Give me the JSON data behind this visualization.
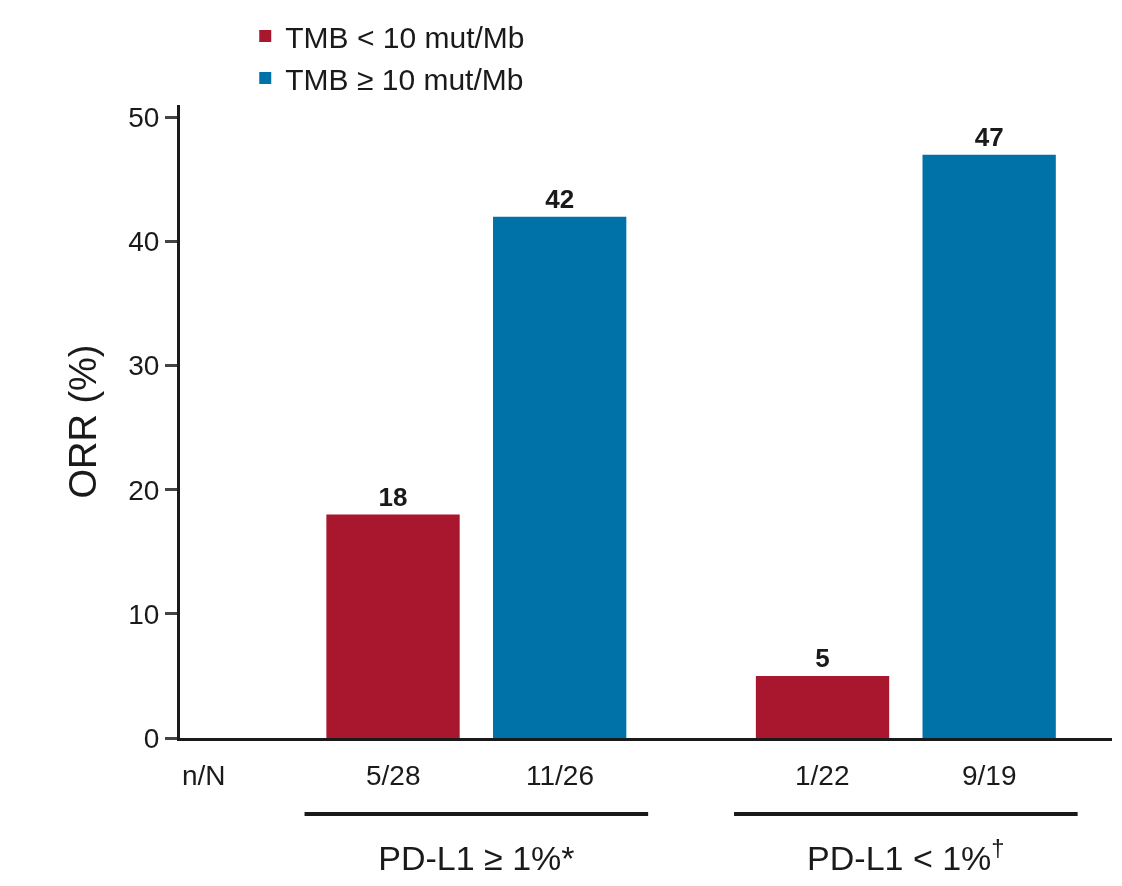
{
  "chart_data": {
    "type": "bar",
    "categories": [
      "PD-L1 ≥ 1%*",
      "PD-L1 < 1%$^{†}$"
    ],
    "series": [
      {
        "name": "TMB < 10 mut/Mb",
        "color": "#a8172e",
        "values": [
          18,
          5
        ]
      },
      {
        "name": "TMB ≥ 10 mut/Mb",
        "color": "#0072a8",
        "values": [
          42,
          47
        ]
      }
    ],
    "ylabel": "ORR (%)",
    "ylim": [
      0,
      51
    ],
    "yticks": [
      0,
      10,
      20,
      30,
      40,
      50
    ],
    "annotations": [
      "n/N",
      "5/28",
      "11/26",
      "1/22",
      "9/19"
    ],
    "data_labels": true,
    "legend": "top left"
  }
}
